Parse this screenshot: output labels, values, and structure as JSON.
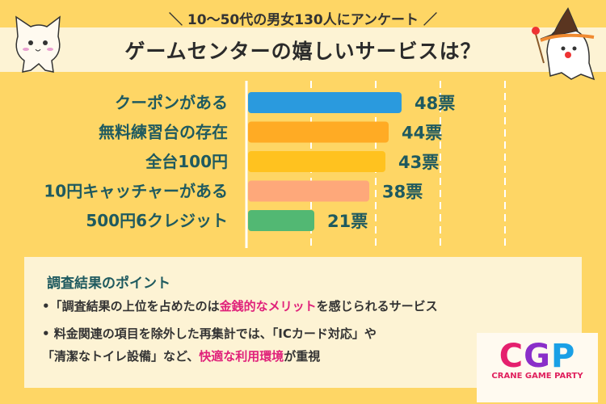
{
  "header": {
    "subtitle": "＼ 10〜50代の男女130人にアンケート ／",
    "title": "ゲームセンターの嬉しいサービスは？"
  },
  "chart_data": {
    "type": "bar",
    "orientation": "horizontal",
    "title": "ゲームセンターの嬉しいサービスは？",
    "categories": [
      "クーポンがある",
      "無料練習台の存在",
      "全台100円",
      "10円キャッチャーがある",
      "500円6クレジット"
    ],
    "values": [
      48,
      44,
      43,
      38,
      21
    ],
    "value_labels": [
      "48票",
      "44票",
      "43票",
      "38票",
      "21票"
    ],
    "colors": [
      "#2a9ade",
      "#ffab24",
      "#ffc21f",
      "#fea87a",
      "#52b873"
    ],
    "xlim": [
      0,
      100
    ],
    "gridlines": [
      20,
      40,
      60,
      80
    ],
    "grid": true
  },
  "notes": {
    "title": "調査結果のポイント",
    "items": [
      {
        "pre": "•「調査結果の上位を占めたのは",
        "hl": "金銭的なメリット",
        "post": "を感じられるサービス"
      },
      {
        "pre": "• 料金関連の項目を除外した再集計では、「ICカード対応」や",
        "hl": "",
        "post": ""
      },
      {
        "pre": "「清潔なトイレ設備」など、",
        "hl": "快適な利用環境",
        "post": "が重視"
      }
    ]
  },
  "logo": {
    "letters": [
      "C",
      "G",
      "P"
    ],
    "letter_colors": [
      "#e5206e",
      "#8a2fc9",
      "#1aa0e6"
    ],
    "text": "CRANE GAME PARTY"
  }
}
